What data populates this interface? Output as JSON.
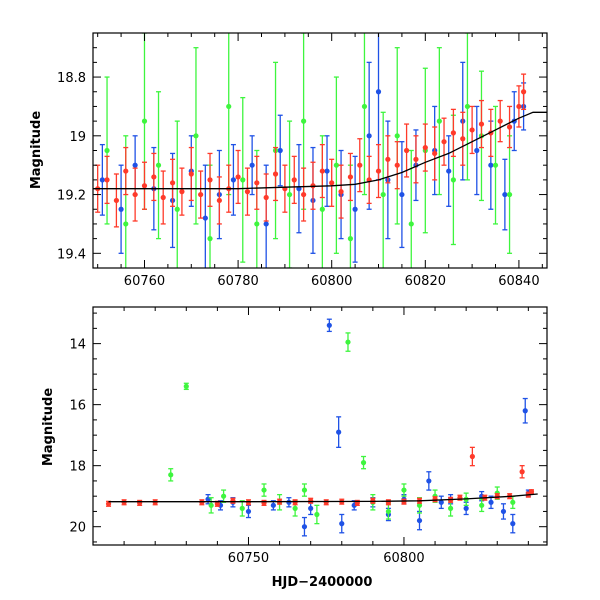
{
  "colors": {
    "blue": "#1f52e6",
    "green": "#3ef53e",
    "red": "#ff3a2a",
    "model": "#000000"
  },
  "chart_data": [
    {
      "type": "scatter",
      "title": "",
      "xlabel": "",
      "ylabel": "Magnitude",
      "xlim": [
        60749,
        60846
      ],
      "ylim": [
        19.45,
        18.65
      ],
      "y_inverted": true,
      "xticks": [
        60760,
        60780,
        60800,
        60820,
        60840
      ],
      "yticks": [
        18.8,
        19,
        19.2,
        19.4
      ],
      "ytick_labels": [
        "18.8",
        "19",
        "19.2",
        "19.4"
      ],
      "note_series": "three photometric series (blue, green, red) with vertical error bars; black smooth model curve",
      "model_curve": {
        "x": [
          60749,
          60760,
          60770,
          60780,
          60790,
          60800,
          60805,
          60810,
          60815,
          60820,
          60825,
          60830,
          60835,
          60840,
          60843,
          60846
        ],
        "y": [
          19.18,
          19.18,
          19.18,
          19.18,
          19.175,
          19.17,
          19.165,
          19.15,
          19.125,
          19.09,
          19.06,
          19.02,
          18.98,
          18.94,
          18.92,
          18.92
        ]
      },
      "series": [
        {
          "color": "blue",
          "x": [
            60751,
            60755,
            60758,
            60762,
            60766,
            60770,
            60773,
            60776,
            60779,
            60783,
            60786,
            60789,
            60793,
            60796,
            60799,
            60802,
            60805,
            60808,
            60810,
            60812,
            60815,
            60818,
            60822,
            60825,
            60828,
            60831,
            60834,
            60837,
            60839,
            60841
          ],
          "y": [
            19.15,
            19.25,
            19.1,
            19.18,
            19.22,
            19.12,
            19.28,
            19.2,
            19.15,
            19.1,
            19.3,
            19.05,
            19.18,
            19.22,
            19.12,
            19.2,
            19.25,
            19.0,
            18.85,
            19.15,
            19.2,
            19.1,
            19.05,
            19.12,
            18.95,
            19.05,
            19.1,
            19.2,
            18.95,
            18.9
          ],
          "err": [
            0.12,
            0.15,
            0.1,
            0.14,
            0.16,
            0.12,
            0.18,
            0.15,
            0.12,
            0.1,
            0.2,
            0.12,
            0.15,
            0.18,
            0.12,
            0.15,
            0.18,
            0.25,
            0.3,
            0.2,
            0.18,
            0.12,
            0.15,
            0.12,
            0.2,
            0.15,
            0.15,
            0.12,
            0.1,
            0.08
          ]
        },
        {
          "color": "green",
          "x": [
            60752,
            60756,
            60760,
            60763,
            60767,
            60771,
            60774,
            60778,
            60781,
            60784,
            60788,
            60791,
            60794,
            60798,
            60801,
            60804,
            60807,
            60811,
            60814,
            60817,
            60820,
            60823,
            60826,
            60829,
            60832,
            60835,
            60838
          ],
          "y": [
            19.05,
            19.3,
            18.95,
            19.1,
            19.25,
            19.0,
            19.35,
            18.9,
            19.15,
            19.3,
            19.05,
            19.2,
            18.95,
            19.25,
            19.1,
            19.35,
            18.9,
            19.2,
            19.0,
            19.3,
            19.05,
            18.95,
            19.15,
            18.9,
            19.0,
            19.1,
            19.2
          ],
          "err": [
            0.25,
            0.3,
            0.3,
            0.25,
            0.3,
            0.3,
            0.25,
            0.3,
            0.28,
            0.25,
            0.3,
            0.25,
            0.3,
            0.25,
            0.3,
            0.25,
            0.3,
            0.28,
            0.3,
            0.25,
            0.28,
            0.25,
            0.22,
            0.25,
            0.22,
            0.2,
            0.2
          ]
        },
        {
          "color": "red",
          "x": [
            60750,
            60752,
            60754,
            60756,
            60758,
            60760,
            60762,
            60764,
            60766,
            60768,
            60770,
            60772,
            60774,
            60776,
            60778,
            60780,
            60782,
            60784,
            60786,
            60788,
            60790,
            60792,
            60794,
            60796,
            60798,
            60800,
            60802,
            60804,
            60806,
            60808,
            60810,
            60812,
            60814,
            60816,
            60818,
            60820,
            60822,
            60824,
            60826,
            60828,
            60830,
            60832,
            60834,
            60836,
            60838,
            60840,
            60841
          ],
          "y": [
            19.18,
            19.15,
            19.22,
            19.12,
            19.2,
            19.17,
            19.14,
            19.21,
            19.16,
            19.19,
            19.13,
            19.2,
            19.15,
            19.22,
            19.18,
            19.14,
            19.19,
            19.16,
            19.21,
            19.13,
            19.18,
            19.15,
            19.2,
            19.17,
            19.12,
            19.16,
            19.19,
            19.14,
            19.1,
            19.15,
            19.12,
            19.08,
            19.1,
            19.05,
            19.08,
            19.04,
            19.06,
            19.02,
            18.99,
            19.01,
            18.98,
            18.96,
            18.99,
            18.95,
            18.97,
            18.9,
            18.85
          ],
          "err": [
            0.08,
            0.08,
            0.09,
            0.08,
            0.09,
            0.08,
            0.08,
            0.09,
            0.08,
            0.08,
            0.09,
            0.08,
            0.09,
            0.08,
            0.08,
            0.09,
            0.08,
            0.09,
            0.08,
            0.09,
            0.08,
            0.08,
            0.09,
            0.08,
            0.09,
            0.08,
            0.09,
            0.08,
            0.09,
            0.08,
            0.09,
            0.08,
            0.08,
            0.09,
            0.08,
            0.08,
            0.09,
            0.08,
            0.08,
            0.09,
            0.08,
            0.08,
            0.08,
            0.07,
            0.07,
            0.07,
            0.06
          ]
        }
      ]
    },
    {
      "type": "scatter",
      "title": "",
      "xlabel": "HJD−2400000",
      "ylabel": "Magnitude",
      "xlim": [
        60700,
        60846
      ],
      "ylim": [
        20.6,
        12.8
      ],
      "y_inverted": true,
      "xticks": [
        60750,
        60800
      ],
      "yticks": [
        14,
        16,
        18,
        20
      ],
      "ytick_labels": [
        "14",
        "16",
        "18",
        "20"
      ],
      "model_curve": {
        "x": [
          60705,
          60750,
          60790,
          60805,
          60820,
          60835,
          60843
        ],
        "y": [
          19.18,
          19.18,
          19.17,
          19.15,
          19.09,
          19.0,
          18.93
        ]
      },
      "series": [
        {
          "color": "blue",
          "x": [
            60737,
            60741,
            60745,
            60750,
            60758,
            60763,
            60768,
            60770,
            60776,
            60779,
            60780,
            60784,
            60790,
            60795,
            60800,
            60805,
            60808,
            60812,
            60815,
            60820,
            60825,
            60828,
            60832,
            60835,
            60839,
            60840
          ],
          "y": [
            19.1,
            19.3,
            19.2,
            19.5,
            19.3,
            19.2,
            20.0,
            19.4,
            13.4,
            16.9,
            19.9,
            19.3,
            19.2,
            19.6,
            19.1,
            19.8,
            18.5,
            19.2,
            19.1,
            19.4,
            19.0,
            19.2,
            19.5,
            19.9,
            16.2,
            18.9
          ],
          "err": [
            0.15,
            0.15,
            0.15,
            0.2,
            0.15,
            0.15,
            0.3,
            0.2,
            0.2,
            0.5,
            0.3,
            0.15,
            0.15,
            0.2,
            0.15,
            0.3,
            0.3,
            0.2,
            0.15,
            0.2,
            0.15,
            0.2,
            0.25,
            0.3,
            0.4,
            0.1
          ]
        },
        {
          "color": "green",
          "x": [
            60725,
            60730,
            60738,
            60742,
            60748,
            60755,
            60760,
            60765,
            60768,
            60772,
            60782,
            60787,
            60790,
            60795,
            60800,
            60805,
            60810,
            60815,
            60820,
            60825,
            60830,
            60835
          ],
          "y": [
            18.3,
            15.4,
            19.3,
            19.0,
            19.4,
            18.8,
            19.2,
            19.4,
            18.8,
            19.6,
            13.95,
            17.9,
            19.2,
            19.5,
            18.8,
            19.3,
            19.0,
            19.4,
            19.1,
            19.3,
            18.9,
            19.2
          ],
          "err": [
            0.2,
            0.1,
            0.25,
            0.2,
            0.25,
            0.2,
            0.25,
            0.25,
            0.2,
            0.3,
            0.3,
            0.2,
            0.25,
            0.25,
            0.2,
            0.25,
            0.2,
            0.25,
            0.2,
            0.2,
            0.2,
            0.2
          ]
        },
        {
          "color": "red",
          "x": [
            60705,
            60710,
            60715,
            60720,
            60735,
            60740,
            60745,
            60750,
            60755,
            60760,
            60765,
            60770,
            60775,
            60780,
            60785,
            60790,
            60795,
            60800,
            60805,
            60810,
            60815,
            60818,
            60822,
            60826,
            60830,
            60834,
            60838,
            60840,
            60841
          ],
          "y": [
            19.25,
            19.2,
            19.22,
            19.2,
            19.2,
            19.25,
            19.15,
            19.2,
            19.22,
            19.18,
            19.2,
            19.15,
            19.2,
            19.18,
            19.22,
            19.15,
            19.2,
            19.18,
            19.15,
            19.1,
            19.12,
            19.05,
            17.7,
            19.05,
            19.0,
            19.0,
            18.2,
            18.95,
            18.85
          ],
          "err": [
            0.08,
            0.08,
            0.08,
            0.08,
            0.08,
            0.08,
            0.08,
            0.08,
            0.08,
            0.08,
            0.08,
            0.08,
            0.08,
            0.08,
            0.08,
            0.08,
            0.08,
            0.08,
            0.08,
            0.08,
            0.08,
            0.08,
            0.3,
            0.08,
            0.08,
            0.08,
            0.2,
            0.08,
            0.06
          ]
        }
      ]
    }
  ]
}
